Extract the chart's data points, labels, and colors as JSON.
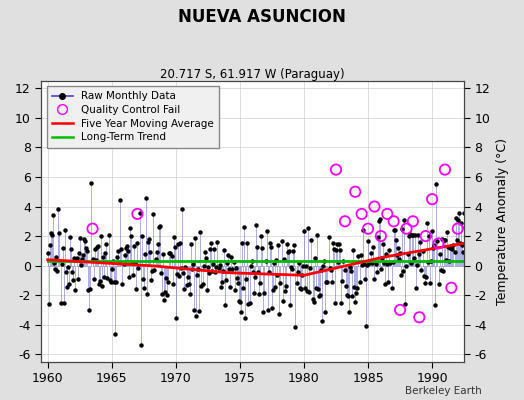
{
  "title": "NUEVA ASUNCION",
  "subtitle": "20.717 S, 61.917 W (Paraguay)",
  "ylabel": "Temperature Anomaly (°C)",
  "xlabel_credit": "Berkeley Earth",
  "xlim": [
    1959.5,
    1992.5
  ],
  "ylim": [
    -6.5,
    12.5
  ],
  "yticks": [
    -6,
    -4,
    -2,
    0,
    2,
    4,
    6,
    8,
    10,
    12
  ],
  "xticks": [
    1960,
    1965,
    1970,
    1975,
    1980,
    1985,
    1990
  ],
  "background_color": "#e0e0e0",
  "plot_bg_color": "#ffffff",
  "stem_color": "#4444cc",
  "dot_color": "#000000",
  "qc_color": "#ff00ff",
  "moving_avg_color": "#ff0000",
  "trend_color": "#00bb00",
  "seed": 17
}
